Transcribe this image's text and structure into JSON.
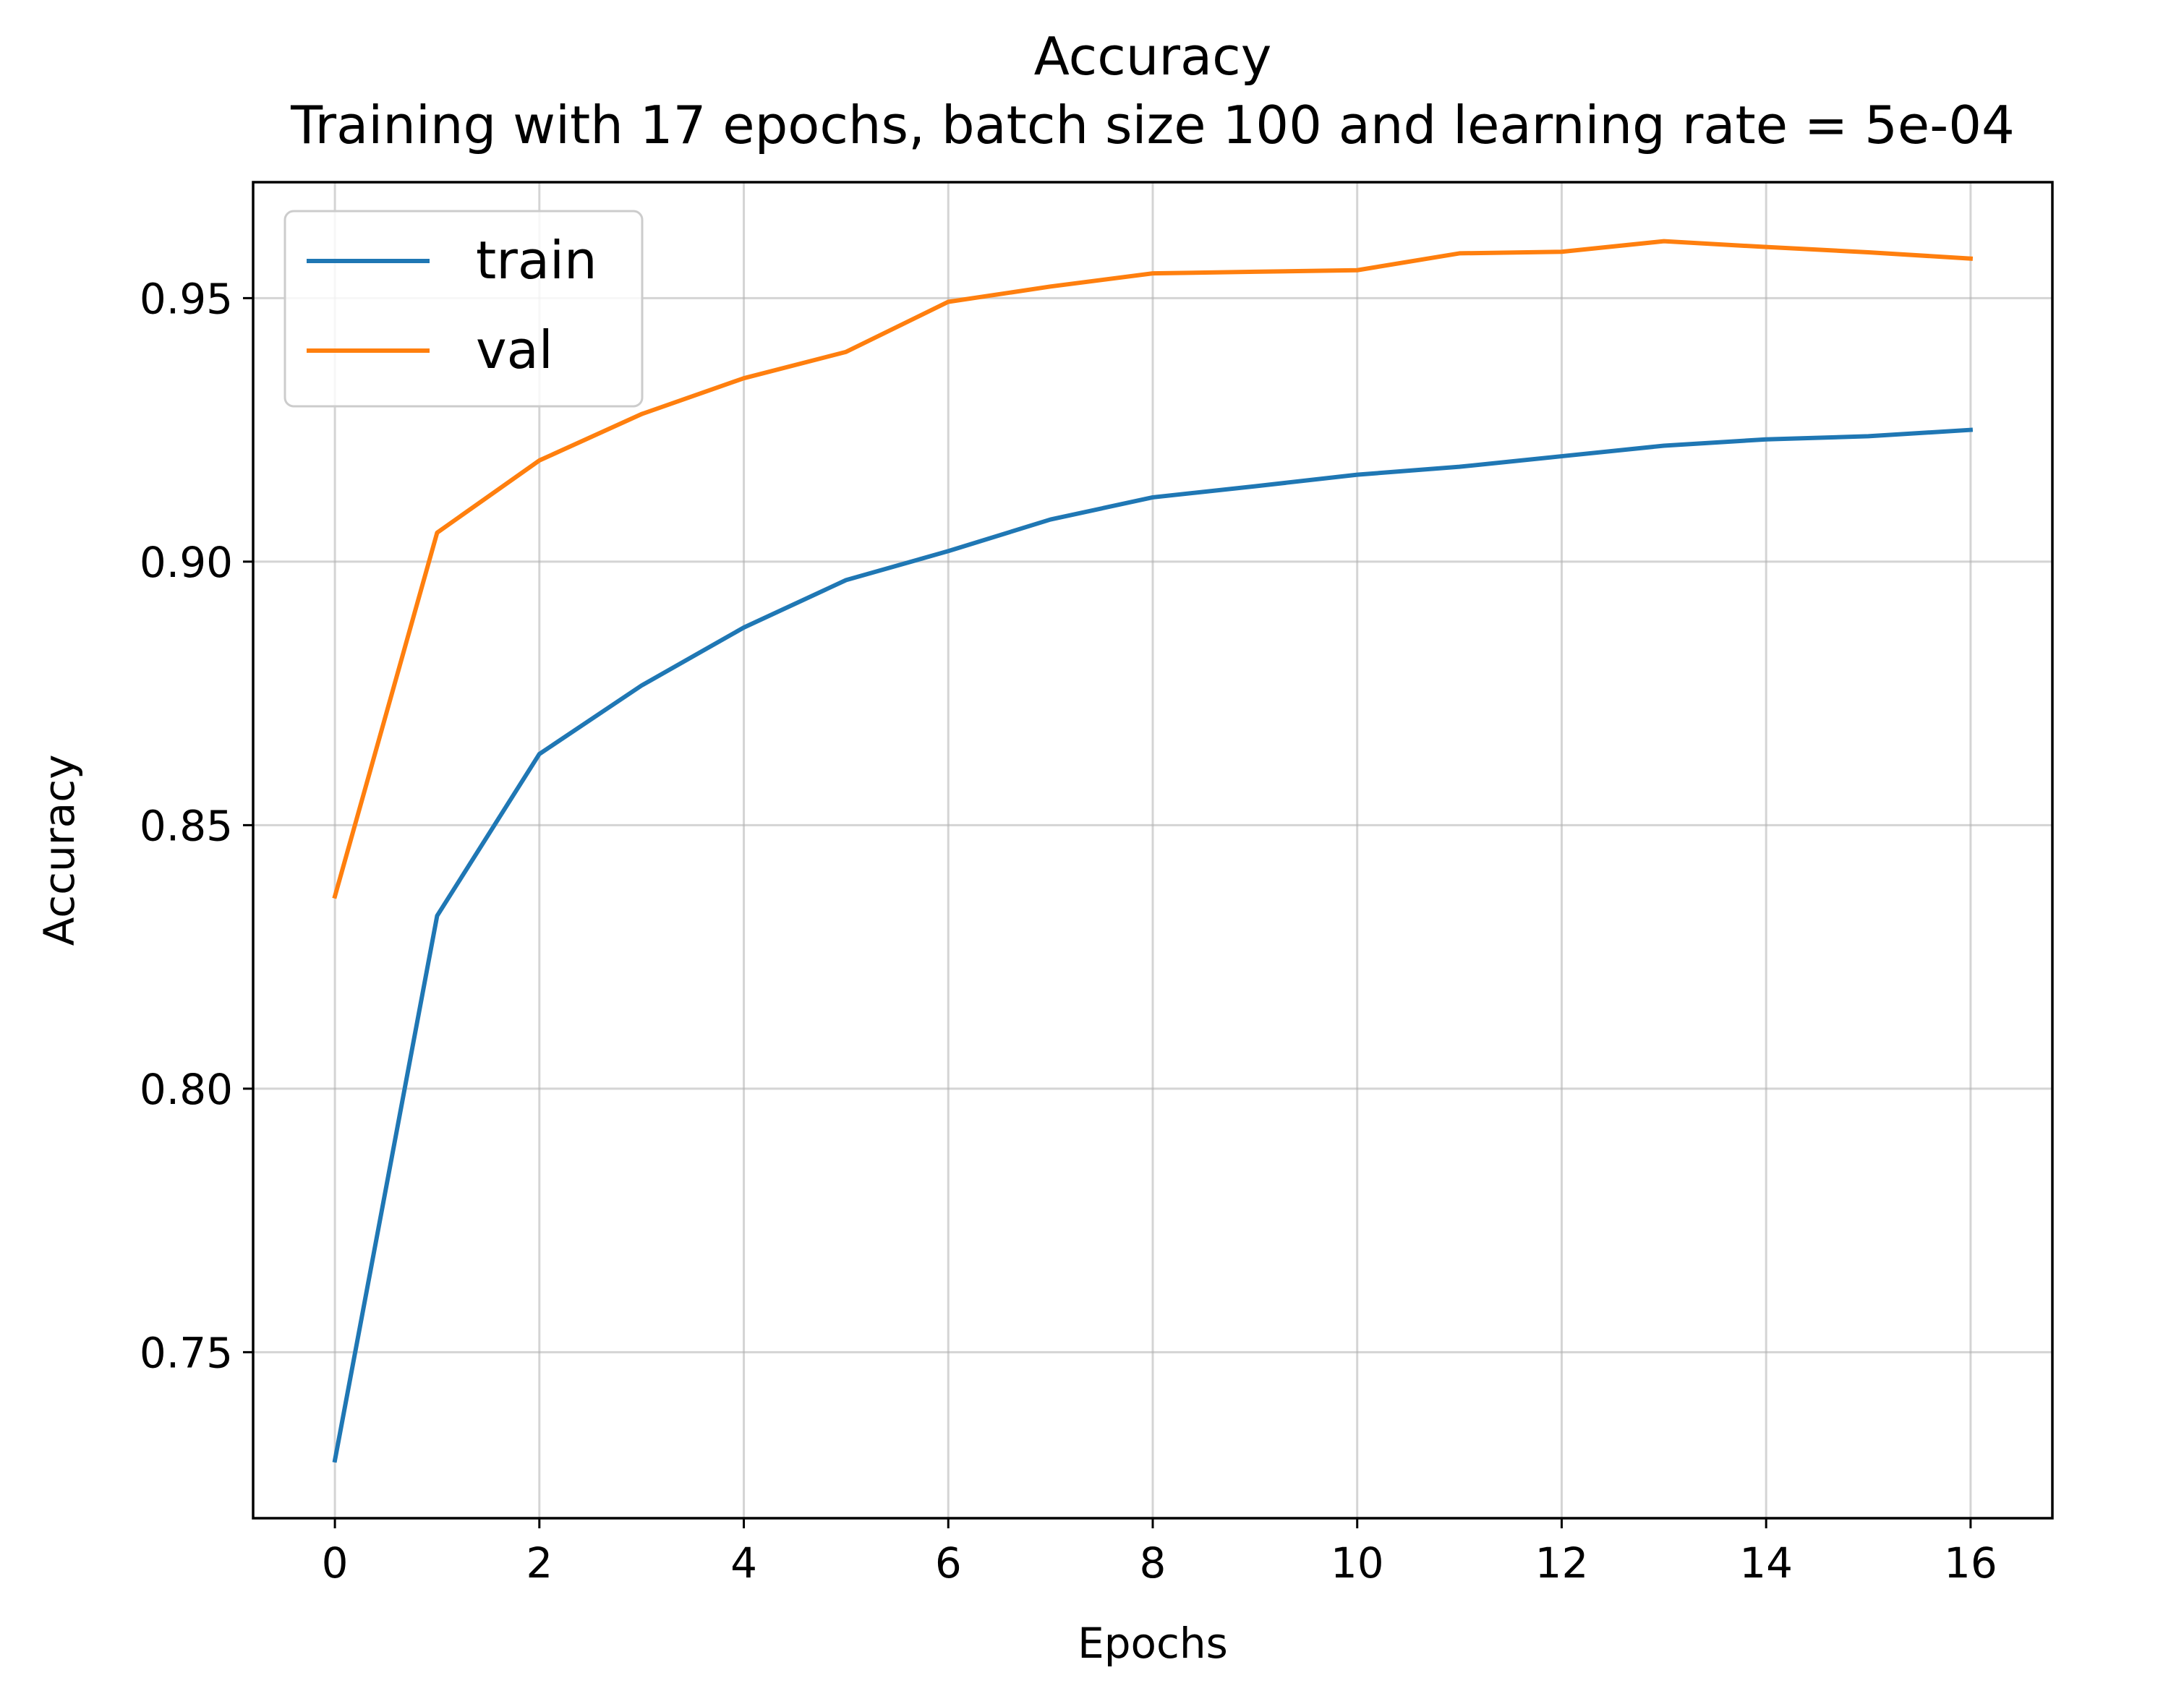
{
  "chart_data": {
    "type": "line",
    "title": "Accuracy",
    "subtitle": "Training with 17 epochs, batch size 100 and learning rate = 5e-04",
    "xlabel": "Epochs",
    "ylabel": "Accuracy",
    "x": [
      0,
      1,
      2,
      3,
      4,
      5,
      6,
      7,
      8,
      9,
      10,
      11,
      12,
      13,
      14,
      15,
      16
    ],
    "series": [
      {
        "name": "train",
        "color": "#1f77b4",
        "values": [
          0.7295,
          0.8328,
          0.8635,
          0.8765,
          0.8875,
          0.8965,
          0.902,
          0.908,
          0.9122,
          0.9143,
          0.9165,
          0.918,
          0.92,
          0.922,
          0.9232,
          0.9238,
          0.925
        ]
      },
      {
        "name": "val",
        "color": "#ff7f0e",
        "values": [
          0.8365,
          0.9055,
          0.9192,
          0.928,
          0.9348,
          0.9398,
          0.9493,
          0.9522,
          0.9547,
          0.955,
          0.9553,
          0.9585,
          0.9588,
          0.9608,
          0.9597,
          0.9587,
          0.9575
        ]
      }
    ],
    "xlim": [
      -0.8,
      16.8
    ],
    "ylim": [
      0.7185,
      0.972
    ],
    "xticks": [
      "0",
      "2",
      "4",
      "6",
      "8",
      "10",
      "12",
      "14",
      "16"
    ],
    "xtick_values": [
      0,
      2,
      4,
      6,
      8,
      10,
      12,
      14,
      16
    ],
    "yticks": [
      "0.75",
      "0.80",
      "0.85",
      "0.90",
      "0.95"
    ],
    "ytick_values": [
      0.75,
      0.8,
      0.85,
      0.9,
      0.95
    ],
    "grid": true,
    "legend_position": "upper-left"
  }
}
